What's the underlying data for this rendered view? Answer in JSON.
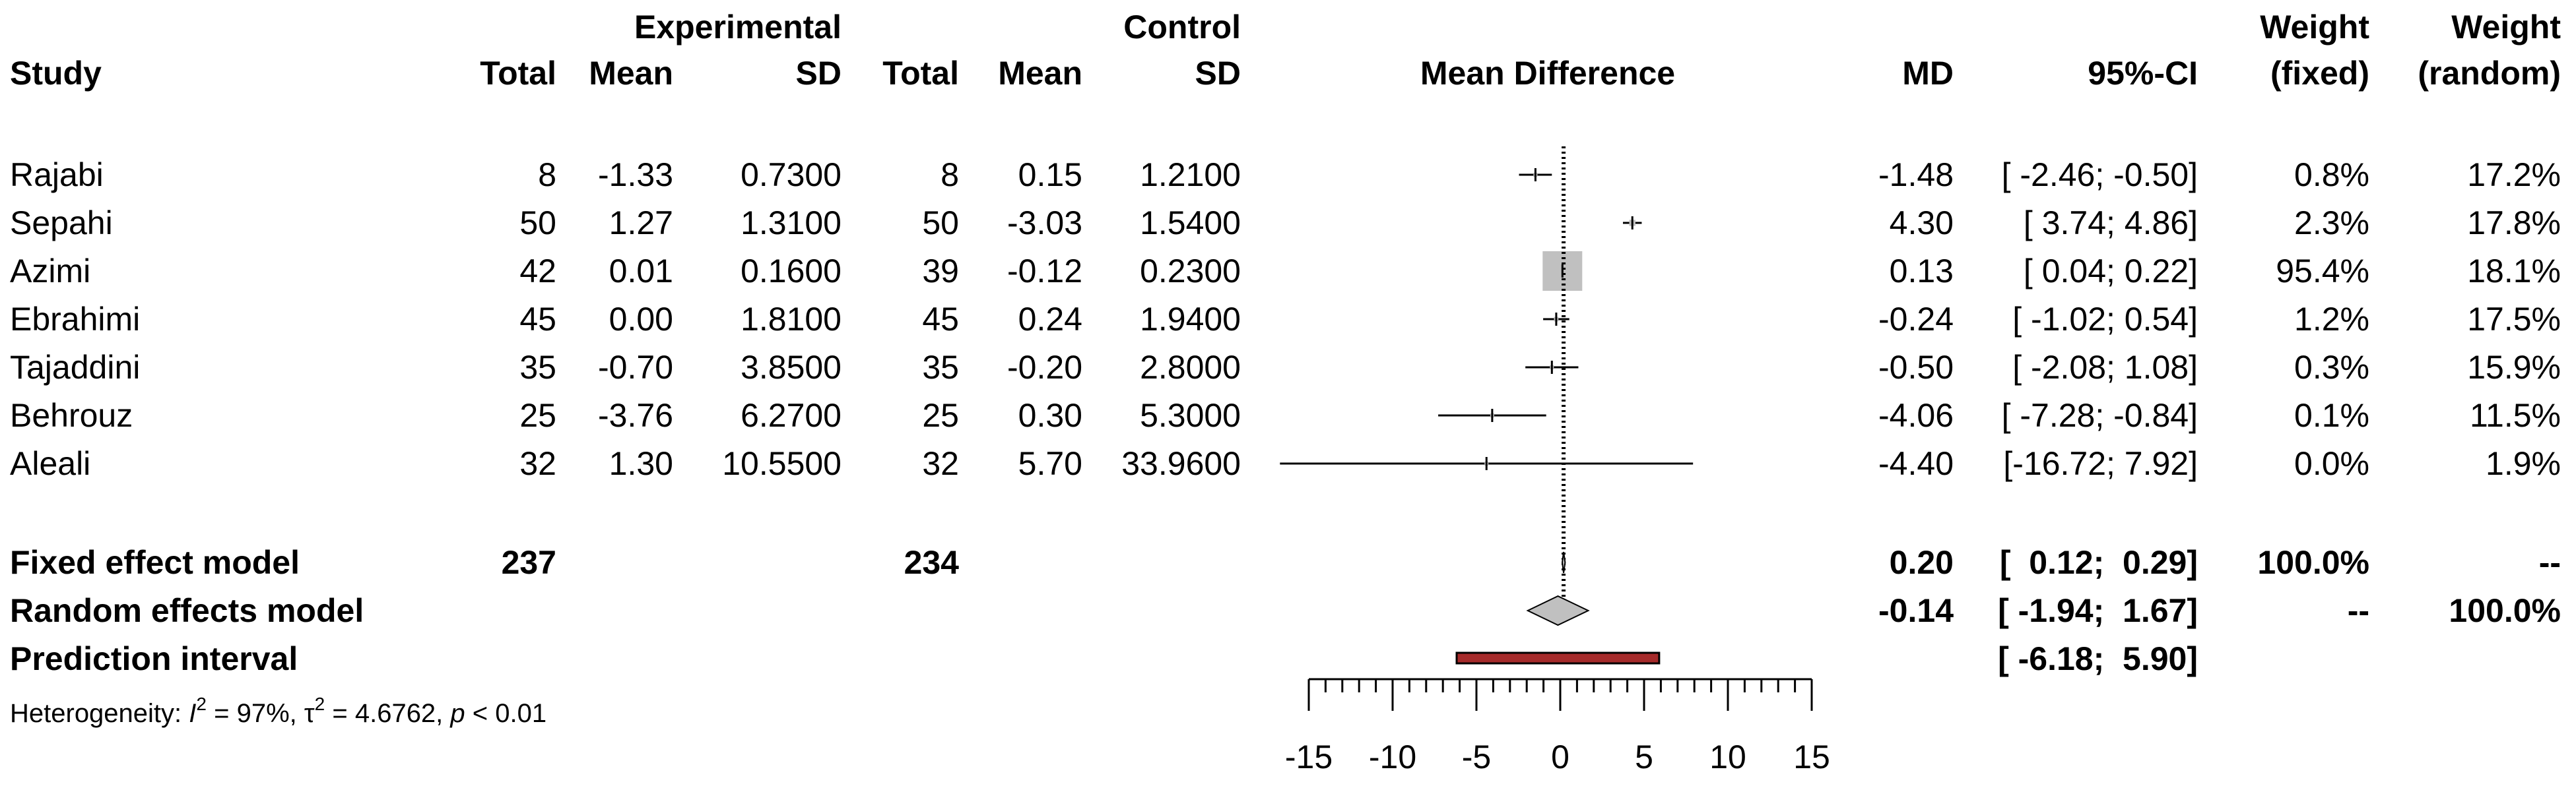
{
  "headers": {
    "study": "Study",
    "experimental": "Experimental",
    "control": "Control",
    "total_e": "Total",
    "mean_e": "Mean",
    "sd_e": "SD",
    "total_c": "Total",
    "mean_c": "Mean",
    "sd_c": "SD",
    "plot_title": "Mean Difference",
    "md": "MD",
    "ci": "95%-CI",
    "weight_fixed_1": "Weight",
    "weight_fixed_2": "(fixed)",
    "weight_random_1": "Weight",
    "weight_random_2": "(random)"
  },
  "chart_data": {
    "type": "forest",
    "xlabel": "Mean Difference",
    "xlim": [
      -15,
      15
    ],
    "xticks": [
      -15,
      -10,
      -5,
      0,
      5,
      10,
      15
    ],
    "studies": [
      {
        "name": "Rajabi",
        "total_e": "8",
        "mean_e": "-1.33",
        "sd_e": "0.7300",
        "total_c": "8",
        "mean_c": "0.15",
        "sd_c": "1.2100",
        "md": -1.48,
        "lo": -2.46,
        "hi": -0.5,
        "md_text": "-1.48",
        "ci_text": "[ -2.46; -0.50]",
        "w_fixed": "0.8%",
        "w_random": "17.2%",
        "w_fixed_value": 0.8
      },
      {
        "name": "Sepahi",
        "total_e": "50",
        "mean_e": "1.27",
        "sd_e": "1.3100",
        "total_c": "50",
        "mean_c": "-3.03",
        "sd_c": "1.5400",
        "md": 4.3,
        "lo": 3.74,
        "hi": 4.86,
        "md_text": "4.30",
        "ci_text": "[  3.74;  4.86]",
        "w_fixed": "2.3%",
        "w_random": "17.8%",
        "w_fixed_value": 2.3
      },
      {
        "name": "Azimi",
        "total_e": "42",
        "mean_e": "0.01",
        "sd_e": "0.1600",
        "total_c": "39",
        "mean_c": "-0.12",
        "sd_c": "0.2300",
        "md": 0.13,
        "lo": 0.04,
        "hi": 0.22,
        "md_text": "0.13",
        "ci_text": "[  0.04;  0.22]",
        "w_fixed": "95.4%",
        "w_random": "18.1%",
        "w_fixed_value": 95.4
      },
      {
        "name": "Ebrahimi",
        "total_e": "45",
        "mean_e": "0.00",
        "sd_e": "1.8100",
        "total_c": "45",
        "mean_c": "0.24",
        "sd_c": "1.9400",
        "md": -0.24,
        "lo": -1.02,
        "hi": 0.54,
        "md_text": "-0.24",
        "ci_text": "[ -1.02;  0.54]",
        "w_fixed": "1.2%",
        "w_random": "17.5%",
        "w_fixed_value": 1.2
      },
      {
        "name": "Tajaddini",
        "total_e": "35",
        "mean_e": "-0.70",
        "sd_e": "3.8500",
        "total_c": "35",
        "mean_c": "-0.20",
        "sd_c": "2.8000",
        "md": -0.5,
        "lo": -2.08,
        "hi": 1.08,
        "md_text": "-0.50",
        "ci_text": "[ -2.08;  1.08]",
        "w_fixed": "0.3%",
        "w_random": "15.9%",
        "w_fixed_value": 0.3
      },
      {
        "name": "Behrouz",
        "total_e": "25",
        "mean_e": "-3.76",
        "sd_e": "6.2700",
        "total_c": "25",
        "mean_c": "0.30",
        "sd_c": "5.3000",
        "md": -4.06,
        "lo": -7.28,
        "hi": -0.84,
        "md_text": "-4.06",
        "ci_text": "[ -7.28; -0.84]",
        "w_fixed": "0.1%",
        "w_random": "11.5%",
        "w_fixed_value": 0.1
      },
      {
        "name": "Aleali",
        "total_e": "32",
        "mean_e": "1.30",
        "sd_e": "10.5500",
        "total_c": "32",
        "mean_c": "5.70",
        "sd_c": "33.9600",
        "md": -4.4,
        "lo": -16.72,
        "hi": 7.92,
        "md_text": "-4.40",
        "ci_text": "[-16.72;  7.92]",
        "w_fixed": "0.0%",
        "w_random": "1.9%",
        "w_fixed_value": 0.0
      }
    ],
    "fixed": {
      "label": "Fixed effect model",
      "total_e": "237",
      "total_c": "234",
      "md": 0.2,
      "lo": 0.12,
      "hi": 0.29,
      "md_text": "0.20",
      "ci_text": "[  0.12;  0.29]",
      "w_fixed": "100.0%",
      "w_random": "--"
    },
    "random": {
      "label": "Random effects model",
      "md": -0.14,
      "lo": -1.94,
      "hi": 1.67,
      "md_text": "-0.14",
      "ci_text": "[ -1.94;  1.67]",
      "w_fixed": "--",
      "w_random": "100.0%"
    },
    "prediction": {
      "label": "Prediction interval",
      "lo": -6.18,
      "hi": 5.9,
      "ci_text": "[ -6.18;  5.90]"
    },
    "heterogeneity": {
      "prefix": "Heterogeneity: ",
      "i2_symbol": "I",
      "i2_value": " = 97%, ",
      "tau_symbol": "τ",
      "tau_value": " = 4.6762, ",
      "p_symbol": "p",
      "p_value": " < 0.01"
    },
    "colors": {
      "square": "#c0c0c0",
      "diamond": "#c0c0c0",
      "prediction_fill": "#a52a2a",
      "line": "#000000"
    }
  }
}
